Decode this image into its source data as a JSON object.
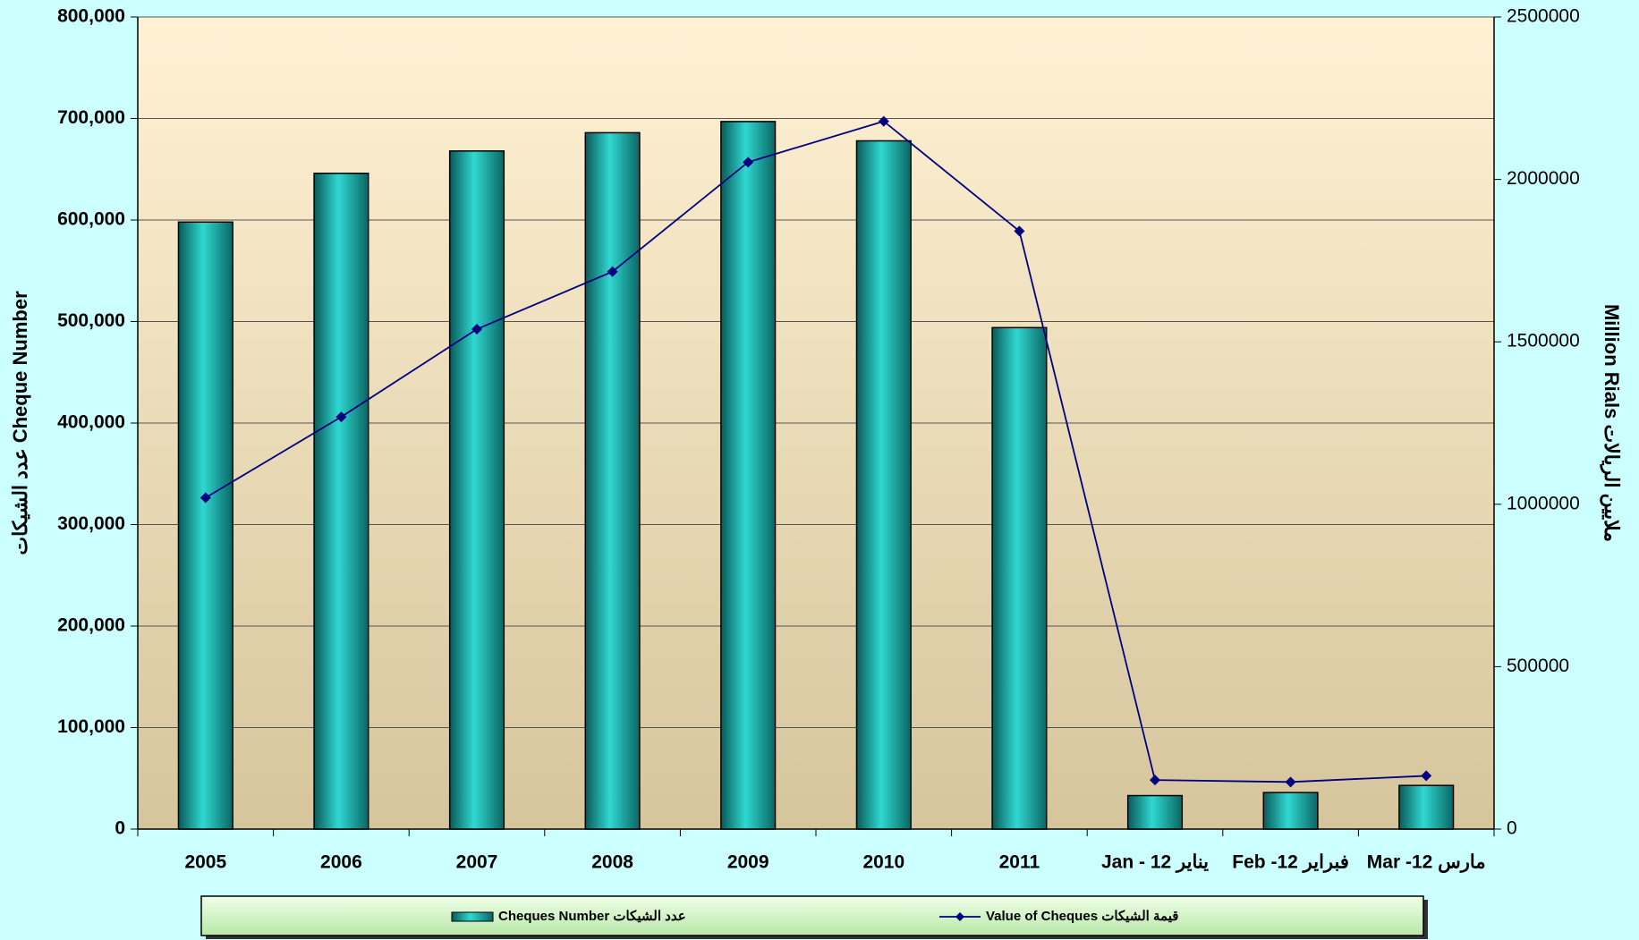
{
  "chart_data": {
    "type": "bar",
    "categories": [
      "2005",
      "2006",
      "2007",
      "2008",
      "2009",
      "2010",
      "2011",
      "Jan - 12 يناير",
      "Feb -12 فبراير",
      "Mar -12 مارس"
    ],
    "series": [
      {
        "name": "Cheques Number عدد الشيكات",
        "color": "#22c4c0",
        "values": [
          598000,
          646000,
          668000,
          686000,
          697000,
          678000,
          494000,
          33000,
          36000,
          43000
        ]
      },
      {
        "name": "Value of Cheques قيمة الشيكات",
        "color": "#000080",
        "type": "line",
        "axis": "y2",
        "values": [
          1020000,
          1269000,
          1539000,
          1716000,
          2053000,
          2179000,
          1841000,
          151000,
          145000,
          164000
        ]
      }
    ],
    "y_label": "عدد الشيكات Cheque Number",
    "y2_label": "Million Rials ملايين الريالات",
    "ylim": [
      0,
      800000
    ],
    "yticks": [
      {
        "value": 0,
        "label": "0"
      },
      {
        "value": 100000,
        "label": "100,000"
      },
      {
        "value": 200000,
        "label": "200,000"
      },
      {
        "value": 300000,
        "label": "300,000"
      },
      {
        "value": 400000,
        "label": "400,000"
      },
      {
        "value": 500000,
        "label": "500,000"
      },
      {
        "value": 600000,
        "label": "600,000"
      },
      {
        "value": 700000,
        "label": "700,000"
      },
      {
        "value": 800000,
        "label": "800,000"
      }
    ],
    "y2lim": [
      0,
      2500000
    ],
    "y2ticks": [
      0,
      500000,
      1000000,
      1500000,
      2000000,
      2500000
    ],
    "grid": true,
    "legend": "bottom"
  }
}
